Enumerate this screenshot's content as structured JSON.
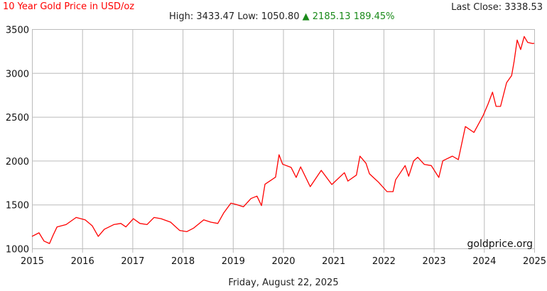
{
  "header": {
    "title": "10 Year Gold Price in USD/oz",
    "last_close_label": "Last Close:",
    "last_close_value": "3338.53",
    "high_label": "High:",
    "high_value": "3433.47",
    "low_label": "Low:",
    "low_value": "1050.80",
    "change_icon": "triangle-up-icon",
    "change_arrow": "▲",
    "change_value": "2185.13",
    "change_percent": "189.45%"
  },
  "footer": {
    "date": "Friday, August 22, 2025"
  },
  "watermark": "goldprice.org",
  "colors": {
    "line": "#ff0000",
    "grid": "#bbbbbb",
    "title": "#ff0000",
    "change_up": "#1a8a1a"
  },
  "chart_data": {
    "type": "line",
    "title": "10 Year Gold Price in USD/oz",
    "xlabel": "",
    "ylabel": "",
    "xlim": [
      2015,
      2025
    ],
    "ylim": [
      1000,
      3500
    ],
    "grid": true,
    "x_ticks": [
      "2015",
      "2016",
      "2017",
      "2018",
      "2019",
      "2020",
      "2021",
      "2022",
      "2023",
      "2024",
      "2025"
    ],
    "y_ticks": [
      "1000",
      "1500",
      "2000",
      "2500",
      "3000",
      "3500"
    ],
    "series": [
      {
        "x": [
          2015.0,
          2015.14,
          2015.24,
          2015.35,
          2015.42,
          2015.5,
          2015.68,
          2015.88,
          2016.06,
          2016.2,
          2016.32,
          2016.44,
          2016.63,
          2016.77,
          2016.87,
          2017.02,
          2017.15,
          2017.29,
          2017.43,
          2017.57,
          2017.76,
          2017.94,
          2018.08,
          2018.22,
          2018.42,
          2018.56,
          2018.7,
          2018.82,
          2018.96,
          2019.07,
          2019.21,
          2019.36,
          2019.48,
          2019.57,
          2019.64,
          2019.85,
          2019.92,
          2019.99,
          2020.16,
          2020.26,
          2020.35,
          2020.54,
          2020.76,
          2020.97,
          2021.22,
          2021.29,
          2021.46,
          2021.53,
          2021.65,
          2021.72,
          2021.9,
          2022.07,
          2022.19,
          2022.24,
          2022.43,
          2022.5,
          2022.6,
          2022.68,
          2022.81,
          2022.95,
          2023.1,
          2023.18,
          2023.37,
          2023.49,
          2023.63,
          2023.8,
          2023.98,
          2024.08,
          2024.17,
          2024.24,
          2024.33,
          2024.45,
          2024.55,
          2024.6,
          2024.66,
          2024.73,
          2024.8,
          2024.87,
          2024.97,
          2025.0
        ],
        "y": [
          1137,
          1178,
          1083,
          1056,
          1150,
          1245,
          1272,
          1353,
          1326,
          1258,
          1137,
          1218,
          1272,
          1285,
          1245,
          1339,
          1285,
          1272,
          1353,
          1339,
          1299,
          1205,
          1191,
          1232,
          1326,
          1299,
          1285,
          1407,
          1515,
          1501,
          1474,
          1569,
          1596,
          1488,
          1731,
          1812,
          2068,
          1960,
          1923,
          1809,
          1930,
          1704,
          1890,
          1728,
          1863,
          1768,
          1836,
          2052,
          1970,
          1850,
          1755,
          1647,
          1647,
          1782,
          1944,
          1823,
          1998,
          2039,
          1958,
          1944,
          1809,
          1998,
          2052,
          2012,
          2389,
          2322,
          2511,
          2646,
          2781,
          2619,
          2619,
          2889,
          2970,
          3132,
          3375,
          3267,
          3416,
          3348,
          3335,
          3338.53
        ]
      }
    ]
  }
}
